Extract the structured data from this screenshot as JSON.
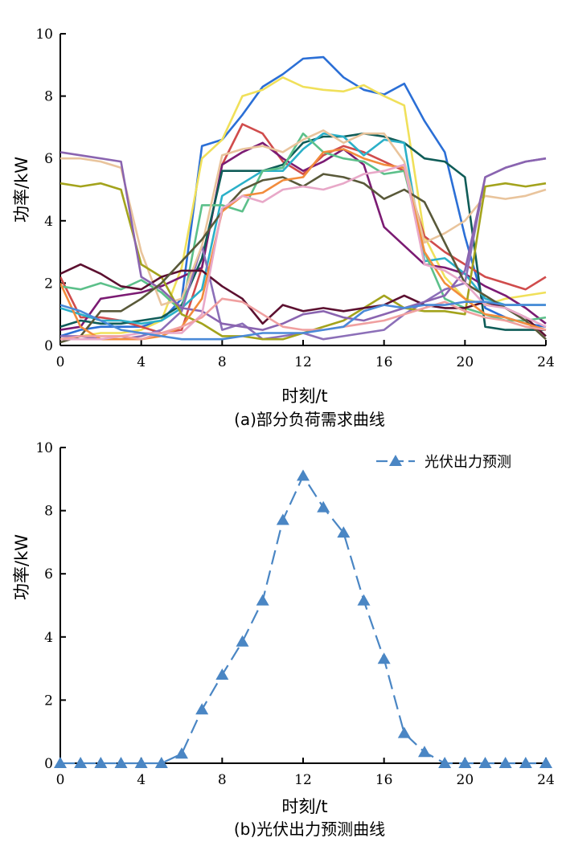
{
  "chart_data": [
    {
      "type": "line",
      "caption": "(a)部分负荷需求曲线",
      "xlabel": "时刻/t",
      "ylabel": "功率/kW",
      "xlim": [
        0,
        24
      ],
      "ylim": [
        0,
        10
      ],
      "xticks": [
        "0",
        "4",
        "8",
        "12",
        "16",
        "20",
        "24"
      ],
      "yticks": [
        "0",
        "2",
        "4",
        "6",
        "8",
        "10"
      ],
      "grid": false,
      "x": [
        0,
        1,
        2,
        3,
        4,
        5,
        6,
        7,
        8,
        9,
        10,
        11,
        12,
        13,
        14,
        15,
        16,
        17,
        18,
        19,
        20,
        21,
        22,
        23,
        24
      ],
      "series": [
        {
          "color": "#2b6fd6",
          "values": [
            0.3,
            0.5,
            0.6,
            0.6,
            0.6,
            0.8,
            1.5,
            6.4,
            6.6,
            7.4,
            8.3,
            8.7,
            9.2,
            9.25,
            8.6,
            8.2,
            8.05,
            8.4,
            7.2,
            6.2,
            3.5,
            1.2,
            0.9,
            0.7,
            0.6
          ]
        },
        {
          "color": "#f0e05a",
          "values": [
            0.2,
            0.3,
            0.4,
            0.4,
            0.5,
            0.8,
            2.5,
            6.0,
            6.6,
            8.0,
            8.2,
            8.6,
            8.3,
            8.2,
            8.15,
            8.35,
            8.0,
            7.7,
            3.5,
            2.2,
            1.5,
            1.3,
            1.5,
            1.6,
            1.7
          ]
        },
        {
          "color": "#d04c4c",
          "values": [
            2.2,
            0.9,
            0.9,
            0.8,
            0.6,
            0.4,
            0.5,
            2.5,
            5.8,
            7.1,
            6.8,
            5.9,
            5.5,
            6.1,
            6.4,
            6.2,
            5.9,
            5.6,
            3.5,
            3.0,
            2.6,
            2.2,
            2.0,
            1.8,
            2.2
          ]
        },
        {
          "color": "#7b1b73",
          "values": [
            0.5,
            0.6,
            1.5,
            1.6,
            1.7,
            1.9,
            2.2,
            2.5,
            5.8,
            6.2,
            6.5,
            6.0,
            5.6,
            5.9,
            6.3,
            5.8,
            3.8,
            3.2,
            2.6,
            2.5,
            2.3,
            1.9,
            1.6,
            1.2,
            0.7
          ]
        },
        {
          "color": "#0f5c58",
          "values": [
            0.6,
            0.8,
            0.7,
            0.7,
            0.8,
            0.9,
            1.3,
            2.8,
            5.6,
            5.6,
            5.6,
            5.8,
            6.5,
            6.7,
            6.7,
            6.8,
            6.7,
            6.5,
            6.0,
            5.9,
            5.4,
            0.6,
            0.5,
            0.5,
            0.5
          ]
        },
        {
          "color": "#2bb0c8",
          "values": [
            1.2,
            1.0,
            0.8,
            0.8,
            0.7,
            0.8,
            1.2,
            1.8,
            4.8,
            5.2,
            5.6,
            5.6,
            6.3,
            6.8,
            6.7,
            6.1,
            6.6,
            6.5,
            2.7,
            2.8,
            2.3,
            1.5,
            1.3,
            1.3,
            1.3
          ]
        },
        {
          "color": "#5cc08a",
          "values": [
            1.9,
            1.8,
            2.0,
            1.8,
            2.1,
            1.7,
            1.1,
            4.5,
            4.5,
            4.3,
            5.6,
            5.7,
            6.8,
            6.2,
            6.0,
            5.9,
            5.5,
            5.6,
            3.0,
            1.5,
            1.2,
            1.0,
            0.8,
            0.8,
            0.9
          ]
        },
        {
          "color": "#8c6fb8",
          "values": [
            0.3,
            0.3,
            0.2,
            0.2,
            0.3,
            0.5,
            1.1,
            3.2,
            0.5,
            0.7,
            0.2,
            0.3,
            0.4,
            0.2,
            0.3,
            0.4,
            0.5,
            1.0,
            1.4,
            1.8,
            2.0,
            5.4,
            5.7,
            5.9,
            6.0
          ]
        },
        {
          "color": "#e9c49c",
          "values": [
            6.0,
            6.0,
            5.9,
            5.7,
            3.0,
            1.3,
            1.5,
            3.2,
            6.1,
            6.3,
            6.4,
            6.2,
            6.6,
            6.9,
            6.5,
            6.8,
            6.8,
            5.9,
            3.3,
            3.6,
            4.0,
            4.8,
            4.7,
            4.8,
            5.0
          ]
        },
        {
          "color": "#a3a31c",
          "values": [
            5.2,
            5.1,
            5.2,
            5.0,
            2.6,
            2.2,
            1.0,
            0.7,
            0.3,
            0.3,
            0.2,
            0.2,
            0.4,
            0.6,
            0.8,
            1.2,
            1.6,
            1.2,
            1.1,
            1.1,
            1.0,
            5.1,
            5.2,
            5.1,
            5.2
          ]
        },
        {
          "color": "#5c1030",
          "values": [
            2.3,
            2.6,
            2.3,
            1.9,
            1.8,
            2.2,
            2.4,
            2.4,
            1.9,
            1.5,
            0.7,
            1.3,
            1.1,
            1.2,
            1.1,
            1.2,
            1.3,
            1.6,
            1.3,
            1.2,
            1.2,
            1.4,
            1.2,
            0.9,
            0.3
          ]
        },
        {
          "color": "#8a64b0",
          "values": [
            6.2,
            6.1,
            6.0,
            5.9,
            2.2,
            1.8,
            1.2,
            1.1,
            0.7,
            0.6,
            0.5,
            0.7,
            1.0,
            1.1,
            0.9,
            0.8,
            1.0,
            1.2,
            1.4,
            1.6,
            2.4,
            5.4,
            5.7,
            5.9,
            6.0
          ]
        },
        {
          "color": "#595939",
          "values": [
            0.1,
            0.3,
            1.1,
            1.1,
            1.5,
            2.0,
            2.7,
            3.4,
            4.3,
            5.0,
            5.3,
            5.4,
            5.1,
            5.5,
            5.4,
            5.2,
            4.7,
            5.0,
            4.6,
            3.3,
            2.0,
            1.6,
            1.2,
            0.8,
            0.2
          ]
        },
        {
          "color": "#f28c3c",
          "values": [
            2.0,
            0.6,
            0.2,
            0.2,
            0.2,
            0.3,
            0.6,
            1.5,
            4.3,
            4.8,
            4.9,
            5.3,
            5.4,
            6.2,
            6.3,
            6.0,
            5.8,
            5.7,
            3.0,
            2.0,
            1.5,
            1.0,
            0.9,
            0.7,
            0.5
          ]
        },
        {
          "color": "#e8a8c8",
          "values": [
            0.2,
            0.2,
            0.2,
            0.3,
            0.4,
            0.4,
            0.4,
            1.0,
            4.4,
            4.8,
            4.6,
            5.0,
            5.1,
            5.0,
            5.2,
            5.5,
            5.6,
            5.8,
            2.6,
            2.4,
            2.0,
            1.3,
            1.2,
            0.9,
            0.6
          ]
        },
        {
          "color": "#f0a0a0",
          "values": [
            0.2,
            0.3,
            0.3,
            0.3,
            0.2,
            0.4,
            0.6,
            0.9,
            1.5,
            1.4,
            1.0,
            0.6,
            0.5,
            0.5,
            0.6,
            0.7,
            0.8,
            1.0,
            1.2,
            1.4,
            1.1,
            0.9,
            0.8,
            0.6,
            0.5
          ]
        },
        {
          "color": "#4a8ad8",
          "values": [
            1.3,
            1.1,
            0.8,
            0.5,
            0.4,
            0.3,
            0.2,
            0.2,
            0.2,
            0.3,
            0.4,
            0.4,
            0.4,
            0.5,
            0.6,
            1.1,
            1.3,
            1.2,
            1.3,
            1.3,
            1.4,
            1.4,
            1.3,
            1.3,
            1.3
          ]
        }
      ]
    },
    {
      "type": "line",
      "caption": "(b)光伏出力预测曲线",
      "xlabel": "时刻/t",
      "ylabel": "功率/kW",
      "xlim": [
        0,
        24
      ],
      "ylim": [
        0,
        10
      ],
      "xticks": [
        "0",
        "4",
        "8",
        "12",
        "16",
        "20",
        "24"
      ],
      "yticks": [
        "0",
        "2",
        "4",
        "6",
        "8",
        "10"
      ],
      "grid": false,
      "legend_position": "top-right",
      "x": [
        0,
        1,
        2,
        3,
        4,
        5,
        6,
        7,
        8,
        9,
        10,
        11,
        12,
        13,
        14,
        15,
        16,
        17,
        18,
        19,
        20,
        21,
        22,
        23,
        24
      ],
      "series": [
        {
          "name": "光伏出力预测",
          "color": "#4a86c4",
          "marker": "triangle",
          "dash": true,
          "values": [
            0,
            0,
            0,
            0,
            0,
            0,
            0.3,
            1.7,
            2.8,
            3.85,
            5.15,
            7.7,
            9.1,
            8.1,
            7.3,
            5.15,
            3.3,
            0.95,
            0.35,
            0,
            0,
            0,
            0,
            0,
            0
          ]
        }
      ]
    }
  ]
}
